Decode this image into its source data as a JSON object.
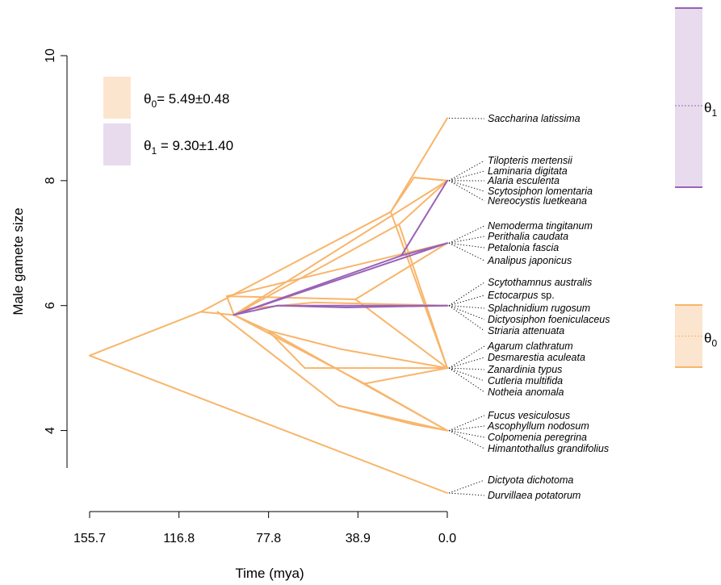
{
  "colors": {
    "regime0": "#F8B56A",
    "regime0_dark": "#F0922E",
    "regime1": "#9A62B8",
    "regime0_fill": "#FCE5CE",
    "regime1_fill": "#E8DBEE"
  },
  "legend": [
    {
      "symbol": "θ",
      "sub": "0",
      "text": "= 5.49±0.48"
    },
    {
      "symbol": "θ",
      "sub": "1",
      "text": " = 9.30±1.40"
    }
  ],
  "optima": [
    {
      "symbol": "θ",
      "sub": "1",
      "mean": 9.3,
      "low": 7.9,
      "high": 10.7
    },
    {
      "symbol": "θ",
      "sub": "0",
      "mean": 5.49,
      "low": 5.01,
      "high": 5.97
    }
  ],
  "chart_data": {
    "type": "line",
    "title": "",
    "xlabel": "Time (mya)",
    "ylabel": "Male gamete size",
    "x_ticks": [
      "155.7",
      "116.8",
      "77.8",
      "38.9",
      "0.0"
    ],
    "y_ticks": [
      "4",
      "6",
      "8",
      "10"
    ],
    "xlim": [
      155.7,
      0.0
    ],
    "ylim": [
      3,
      10
    ],
    "tips": [
      {
        "genus": "Saccharina",
        "epithet": "latissima",
        "y": 9.0
      },
      {
        "genus": "Tilopteris",
        "epithet": "mertensii",
        "y": 8.0
      },
      {
        "genus": "Laminaria",
        "epithet": "digitata",
        "y": 8.0
      },
      {
        "genus": "Alaria",
        "epithet": "esculenta",
        "y": 8.0
      },
      {
        "genus": "Scytosiphon",
        "epithet": "lomentaria",
        "y": 8.0
      },
      {
        "genus": "Nereocystis",
        "epithet": "luetkeana",
        "y": 8.0
      },
      {
        "genus": "Nemoderma",
        "epithet": "tingitanum",
        "y": 7.0
      },
      {
        "genus": "Perithalia",
        "epithet": "caudata",
        "y": 7.0
      },
      {
        "genus": "Petalonia",
        "epithet": "fascia",
        "y": 7.0
      },
      {
        "genus": "Analipus",
        "epithet": "japonicus",
        "y": 7.0
      },
      {
        "genus": "Scytothamnus",
        "epithet": "australis",
        "y": 6.0
      },
      {
        "genus": "Ectocarpus",
        "epithet": "sp.",
        "y": 6.0,
        "upright_epithet": true
      },
      {
        "genus": "Splachnidium",
        "epithet": "rugosum",
        "y": 6.0
      },
      {
        "genus": "Dictyosiphon",
        "epithet": "foeniculaceus",
        "y": 6.0
      },
      {
        "genus": "Striaria",
        "epithet": "attenuata",
        "y": 6.0
      },
      {
        "genus": "Agarum",
        "epithet": "clathratum",
        "y": 5.0
      },
      {
        "genus": "Desmarestia",
        "epithet": "aculeata",
        "y": 5.0
      },
      {
        "genus": "Zanardinia",
        "epithet": "typus",
        "y": 5.0
      },
      {
        "genus": "Cutleria",
        "epithet": "multifida",
        "y": 5.0
      },
      {
        "genus": "Notheia",
        "epithet": "anomala",
        "y": 5.0
      },
      {
        "genus": "Fucus",
        "epithet": "vesiculosus",
        "y": 4.0
      },
      {
        "genus": "Ascophyllum",
        "epithet": "nodosum",
        "y": 4.0
      },
      {
        "genus": "Colpomenia",
        "epithet": "peregrina",
        "y": 4.0
      },
      {
        "genus": "Himantothallus",
        "epithet": "grandifolius",
        "y": 4.0
      },
      {
        "genus": "Dictyota",
        "epithet": "dichotoma",
        "y": 3.0
      },
      {
        "genus": "Durvillaea",
        "epithet": "potatorum",
        "y": 3.0
      }
    ],
    "branches": [
      {
        "from": [
          155.7,
          5.2
        ],
        "to": [
          107.3,
          5.9
        ],
        "regime": 0
      },
      {
        "from": [
          155.7,
          5.2
        ],
        "to": [
          0.0,
          3.0
        ],
        "regime": 0
      },
      {
        "from": [
          107.3,
          5.9
        ],
        "to": [
          24.6,
          7.5
        ],
        "regime": 0
      },
      {
        "from": [
          107.3,
          5.9
        ],
        "to": [
          92.9,
          5.85
        ],
        "regime": 0
      },
      {
        "from": [
          92.9,
          5.85
        ],
        "to": [
          96.0,
          6.15
        ],
        "regime": 0
      },
      {
        "from": [
          92.9,
          5.85
        ],
        "to": [
          78.0,
          5.6
        ],
        "regime": 0
      },
      {
        "from": [
          92.9,
          5.85
        ],
        "to": [
          87.1,
          5.95
        ],
        "regime": 0
      },
      {
        "from": [
          96.0,
          6.15
        ],
        "to": [
          0.0,
          7.0
        ],
        "regime": 0
      },
      {
        "from": [
          96.0,
          6.15
        ],
        "to": [
          40.0,
          6.1
        ],
        "regime": 0
      },
      {
        "from": [
          40.0,
          6.1
        ],
        "to": [
          0.0,
          5.0
        ],
        "regime": 0
      },
      {
        "from": [
          40.0,
          6.1
        ],
        "to": [
          0.0,
          7.0
        ],
        "regime": 0
      },
      {
        "from": [
          24.6,
          7.5
        ],
        "to": [
          14.5,
          8.05
        ],
        "regime": 0
      },
      {
        "from": [
          24.6,
          7.5
        ],
        "to": [
          0.0,
          5.0
        ],
        "regime": 0
      },
      {
        "from": [
          24.6,
          7.5
        ],
        "to": [
          0.0,
          9.0
        ],
        "regime": 0
      },
      {
        "from": [
          14.5,
          8.05
        ],
        "to": [
          0.0,
          8.0
        ],
        "regime": 0
      },
      {
        "from": [
          14.5,
          8.05
        ],
        "to": [
          0.0,
          8.0
        ],
        "regime": 0
      },
      {
        "from": [
          92.9,
          5.85
        ],
        "to": [
          0.0,
          8.0
        ],
        "regime": 0
      },
      {
        "from": [
          78.0,
          5.6
        ],
        "to": [
          0.0,
          4.0
        ],
        "regime": 0
      },
      {
        "from": [
          78.0,
          5.6
        ],
        "to": [
          46.0,
          5.3
        ],
        "regime": 0
      },
      {
        "from": [
          46.0,
          5.3
        ],
        "to": [
          0.0,
          5.0
        ],
        "regime": 0
      },
      {
        "from": [
          78.0,
          5.6
        ],
        "to": [
          62.0,
          5.0
        ],
        "regime": 0
      },
      {
        "from": [
          62.0,
          5.0
        ],
        "to": [
          0.0,
          5.0
        ],
        "regime": 0
      },
      {
        "from": [
          36.0,
          4.75
        ],
        "to": [
          0.0,
          5.0
        ],
        "regime": 0
      },
      {
        "from": [
          36.0,
          4.75
        ],
        "to": [
          0.0,
          4.0
        ],
        "regime": 0
      },
      {
        "from": [
          92.9,
          5.85
        ],
        "to": [
          36.0,
          4.75
        ],
        "regime": 0
      },
      {
        "from": [
          100.0,
          5.9
        ],
        "to": [
          47.5,
          4.4
        ],
        "regime": 0
      },
      {
        "from": [
          47.5,
          4.4
        ],
        "to": [
          0.0,
          4.0
        ],
        "regime": 0
      },
      {
        "from": [
          47.5,
          4.4
        ],
        "to": [
          15.0,
          4.1
        ],
        "regime": 0
      },
      {
        "from": [
          15.0,
          4.1
        ],
        "to": [
          0.0,
          4.0
        ],
        "regime": 0
      },
      {
        "from": [
          92.9,
          5.85
        ],
        "to": [
          21.0,
          7.3
        ],
        "regime": 0
      },
      {
        "from": [
          21.0,
          7.3
        ],
        "to": [
          0.0,
          8.0
        ],
        "regime": 0
      },
      {
        "from": [
          21.0,
          7.3
        ],
        "to": [
          0.0,
          5.0
        ],
        "regime": 0
      },
      {
        "from": [
          87.1,
          5.95
        ],
        "to": [
          58.0,
          6.05
        ],
        "regime": 0
      },
      {
        "from": [
          58.0,
          6.05
        ],
        "to": [
          0.0,
          6.0
        ],
        "regime": 0
      },
      {
        "from": [
          20.0,
          6.8
        ],
        "to": [
          0.0,
          8.0
        ],
        "regime": 1
      },
      {
        "from": [
          20.0,
          6.8
        ],
        "to": [
          0.0,
          7.0
        ],
        "regime": 1
      },
      {
        "from": [
          92.9,
          5.85
        ],
        "to": [
          20.0,
          6.8
        ],
        "regime": 1
      },
      {
        "from": [
          92.9,
          5.85
        ],
        "to": [
          74.0,
          6.0
        ],
        "regime": 1
      },
      {
        "from": [
          74.0,
          6.0
        ],
        "to": [
          0.0,
          6.0
        ],
        "regime": 1
      },
      {
        "from": [
          74.0,
          6.0
        ],
        "to": [
          44.0,
          5.97
        ],
        "regime": 1
      },
      {
        "from": [
          44.0,
          5.97
        ],
        "to": [
          0.0,
          6.0
        ],
        "regime": 1
      },
      {
        "from": [
          92.9,
          5.85
        ],
        "to": [
          0.0,
          7.0
        ],
        "regime": 1
      }
    ]
  }
}
